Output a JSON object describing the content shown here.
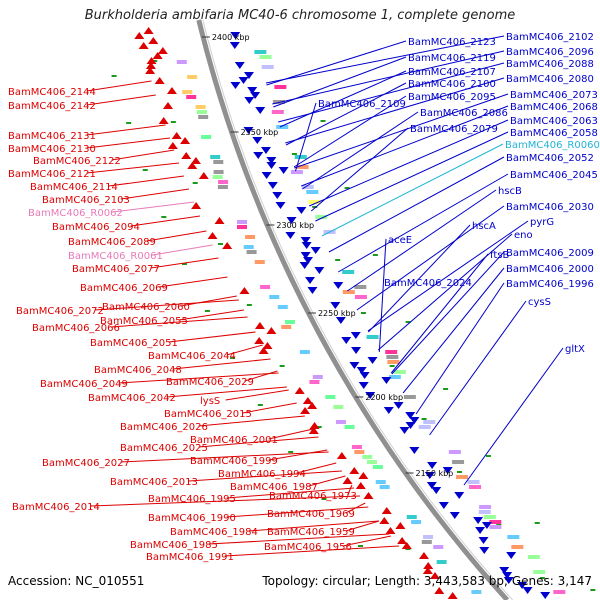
{
  "title": "Burkholderia ambifaria MC40-6 chromosome 1, complete genome",
  "accession": "Accession: NC_010551",
  "summary": "Topology: circular; Length: 3,443,583 bp; Genes: 3,147",
  "ticks": [
    "2400 kbp",
    "2350 kbp",
    "2300 kbp",
    "2250 kbp",
    "2200 kbp",
    "2150 kbp"
  ],
  "colors": {
    "minus_strand": "#dd0000",
    "plus_strand": "#0000cc",
    "rna_pink": "#e87ab8",
    "rna_cyan": "#22b4d8",
    "backbone": "#909090",
    "green_tick": "#1a9a1a"
  },
  "left_labels": [
    {
      "text": "BamMC406_2144"
    },
    {
      "text": "BamMC406_2142"
    },
    {
      "text": "BamMC406_2131"
    },
    {
      "text": "BamMC406_2130"
    },
    {
      "text": "BamMC406_2122"
    },
    {
      "text": "BamMC406_2121"
    },
    {
      "text": "BamMC406_2114"
    },
    {
      "text": "BamMC406_2103"
    },
    {
      "text": "BamMC406_R0062",
      "kind": "rna"
    },
    {
      "text": "BamMC406_2094"
    },
    {
      "text": "BamMC406_2089"
    },
    {
      "text": "BamMC406_R0061",
      "kind": "rna"
    },
    {
      "text": "BamMC406_2077"
    },
    {
      "text": "BamMC406_2069"
    },
    {
      "text": "BamMC406_2060"
    },
    {
      "text": "BamMC406_2072"
    },
    {
      "text": "BamMC406_2055"
    },
    {
      "text": "BamMC406_2066"
    },
    {
      "text": "BamMC406_2051"
    },
    {
      "text": "BamMC406_2044"
    },
    {
      "text": "BamMC406_2048"
    },
    {
      "text": "BamMC406_2049"
    },
    {
      "text": "BamMC406_2029"
    },
    {
      "text": "BamMC406_2042"
    },
    {
      "text": "lysS"
    },
    {
      "text": "BamMC406_2015"
    },
    {
      "text": "BamMC406_2026"
    },
    {
      "text": "BamMC406_2001"
    },
    {
      "text": "BamMC406_2025"
    },
    {
      "text": "BamMC406_1999"
    },
    {
      "text": "BamMC406_2027"
    },
    {
      "text": "BamMC406_1994"
    },
    {
      "text": "BamMC406_2013"
    },
    {
      "text": "BamMC406_1987"
    },
    {
      "text": "BamMC406_1995"
    },
    {
      "text": "BamMC406_1973"
    },
    {
      "text": "BamMC406_2014"
    },
    {
      "text": "BamMC406_1990"
    },
    {
      "text": "BamMC406_1969"
    },
    {
      "text": "BamMC406_1984"
    },
    {
      "text": "BamMC406_1985"
    },
    {
      "text": "BamMC406_1959"
    },
    {
      "text": "BamMC406_1991"
    },
    {
      "text": "BamMC406_1956"
    }
  ],
  "right_labels": [
    {
      "text": "BamMC406_2123"
    },
    {
      "text": "BamMC406_2102"
    },
    {
      "text": "BamMC406_2119"
    },
    {
      "text": "BamMC406_2096"
    },
    {
      "text": "BamMC406_2107"
    },
    {
      "text": "BamMC406_2088"
    },
    {
      "text": "BamMC406_2100"
    },
    {
      "text": "BamMC406_2080"
    },
    {
      "text": "BamMC406_2109"
    },
    {
      "text": "BamMC406_2095"
    },
    {
      "text": "BamMC406_2073"
    },
    {
      "text": "BamMC406_2086"
    },
    {
      "text": "BamMC406_2068"
    },
    {
      "text": "BamMC406_2079"
    },
    {
      "text": "BamMC406_2063"
    },
    {
      "text": "BamMC406_2058"
    },
    {
      "text": "BamMC406_R0060",
      "kind": "rna"
    },
    {
      "text": "BamMC406_2052"
    },
    {
      "text": "BamMC406_2045"
    },
    {
      "text": "hscB"
    },
    {
      "text": "BamMC406_2030"
    },
    {
      "text": "hscA"
    },
    {
      "text": "pyrG"
    },
    {
      "text": "aceE"
    },
    {
      "text": "eno"
    },
    {
      "text": "ftsB"
    },
    {
      "text": "BamMC406_2009"
    },
    {
      "text": "BamMC406_2000"
    },
    {
      "text": "BamMC406_2024"
    },
    {
      "text": "BamMC406_1996"
    },
    {
      "text": "cysS"
    },
    {
      "text": "gltX"
    }
  ]
}
